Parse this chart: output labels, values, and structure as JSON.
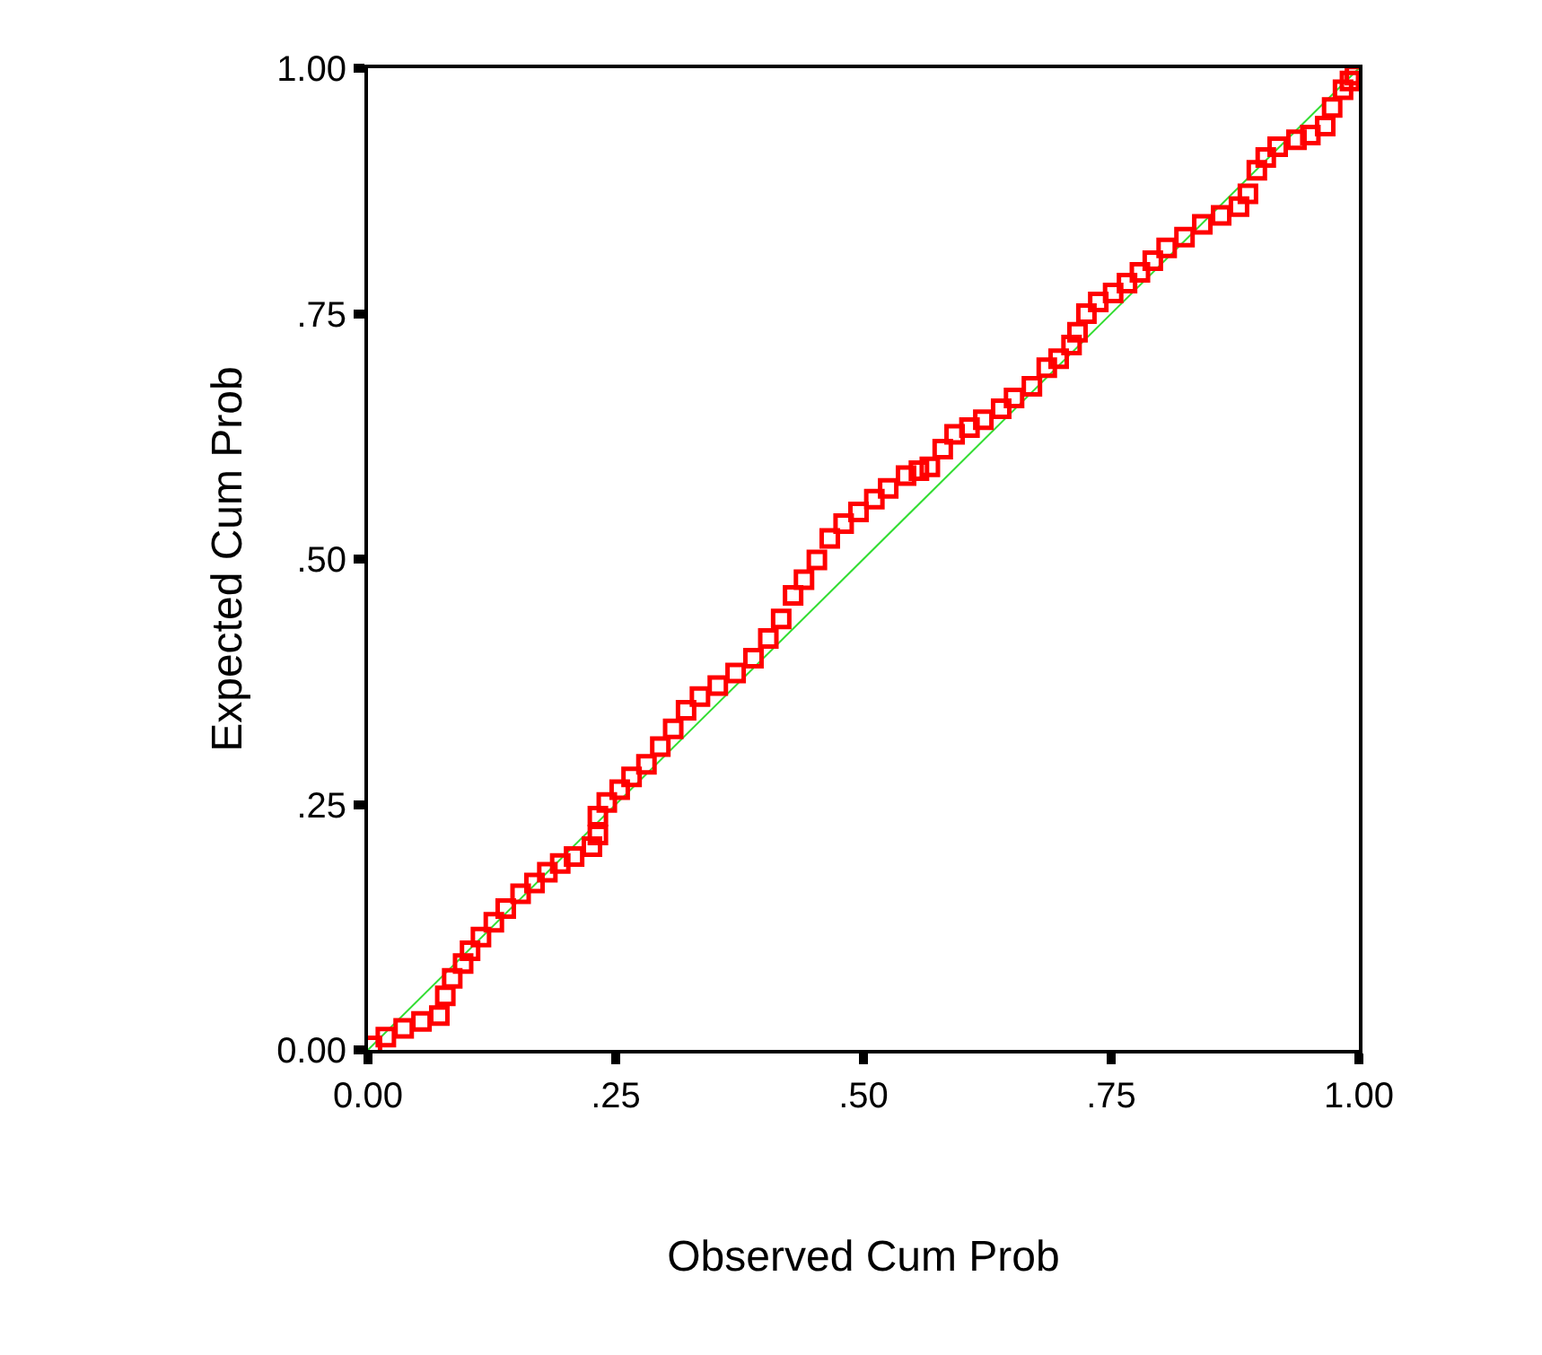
{
  "chart_data": {
    "type": "scatter",
    "xlabel": "Observed Cum Prob",
    "ylabel": "Expected Cum Prob",
    "xlim": [
      0,
      1
    ],
    "ylim": [
      0,
      1
    ],
    "xticks": [
      {
        "value": 0,
        "label": "0.00"
      },
      {
        "value": 0.25,
        "label": ".25"
      },
      {
        "value": 0.5,
        "label": ".50"
      },
      {
        "value": 0.75,
        "label": ".75"
      },
      {
        "value": 1,
        "label": "1.00"
      }
    ],
    "yticks": [
      {
        "value": 0,
        "label": "0.00"
      },
      {
        "value": 0.25,
        "label": ".25"
      },
      {
        "value": 0.5,
        "label": ".50"
      },
      {
        "value": 0.75,
        "label": ".75"
      },
      {
        "value": 1,
        "label": "1.00"
      }
    ],
    "series": [
      {
        "type": "line",
        "marker": "none",
        "color": "#33dd33",
        "x": [
          0,
          1
        ],
        "values": [
          0,
          1
        ]
      },
      {
        "marker": "square",
        "color": "#ff0000",
        "x": [
          0.004,
          0.018,
          0.036,
          0.054,
          0.072,
          0.078,
          0.085,
          0.096,
          0.103,
          0.114,
          0.127,
          0.139,
          0.154,
          0.168,
          0.181,
          0.194,
          0.208,
          0.226,
          0.232,
          0.232,
          0.241,
          0.254,
          0.266,
          0.281,
          0.295,
          0.308,
          0.321,
          0.335,
          0.353,
          0.371,
          0.389,
          0.404,
          0.417,
          0.429,
          0.44,
          0.453,
          0.466,
          0.48,
          0.495,
          0.511,
          0.525,
          0.543,
          0.556,
          0.567,
          0.58,
          0.592,
          0.607,
          0.621,
          0.639,
          0.652,
          0.67,
          0.685,
          0.697,
          0.71,
          0.716,
          0.725,
          0.737,
          0.752,
          0.766,
          0.779,
          0.792,
          0.806,
          0.824,
          0.842,
          0.861,
          0.879,
          0.888,
          0.897,
          0.906,
          0.918,
          0.937,
          0.951,
          0.966,
          0.973,
          0.984,
          0.991,
          0.996
        ],
        "values": [
          0.004,
          0.013,
          0.022,
          0.029,
          0.035,
          0.055,
          0.073,
          0.088,
          0.101,
          0.115,
          0.13,
          0.144,
          0.159,
          0.17,
          0.181,
          0.19,
          0.197,
          0.207,
          0.219,
          0.238,
          0.252,
          0.265,
          0.278,
          0.291,
          0.309,
          0.327,
          0.346,
          0.36,
          0.371,
          0.384,
          0.399,
          0.419,
          0.439,
          0.463,
          0.479,
          0.499,
          0.521,
          0.536,
          0.548,
          0.561,
          0.572,
          0.585,
          0.59,
          0.594,
          0.612,
          0.627,
          0.634,
          0.642,
          0.653,
          0.664,
          0.676,
          0.695,
          0.704,
          0.718,
          0.731,
          0.75,
          0.762,
          0.771,
          0.781,
          0.792,
          0.804,
          0.817,
          0.828,
          0.841,
          0.85,
          0.859,
          0.872,
          0.896,
          0.909,
          0.92,
          0.927,
          0.932,
          0.941,
          0.96,
          0.978,
          0.987,
          0.993
        ]
      }
    ]
  }
}
